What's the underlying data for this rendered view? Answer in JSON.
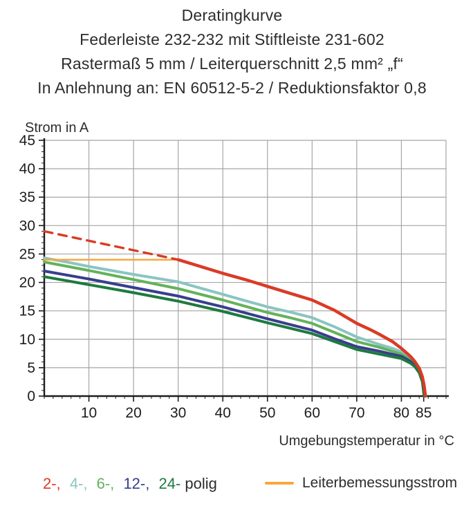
{
  "chart_data": {
    "type": "line",
    "title_lines": [
      "Deratingkurve",
      "Federleiste 232-232 mit Stiftleiste 231-602",
      "Rastermaß 5 mm / Leiterquerschnitt 2,5 mm² „f“",
      "In Anlehnung an: EN 60512-5-2 / Reduktionsfaktor 0,8"
    ],
    "ylabel": "Strom in A",
    "xlabel": "Umgebungstemperatur in °C",
    "xlim": [
      0,
      90
    ],
    "ylim": [
      0,
      45
    ],
    "x_ticks": [
      10,
      20,
      30,
      40,
      50,
      60,
      70,
      80,
      85
    ],
    "y_ticks": [
      0,
      5,
      10,
      15,
      20,
      25,
      30,
      35,
      40,
      45
    ],
    "grid": true,
    "grid_color": "#a5a5a5",
    "axis_color": "#1c1c1c",
    "legend_position": "bottom",
    "series": [
      {
        "name": "4-polig",
        "label": "4-polig",
        "color": "#8ac5c1",
        "style": "solid",
        "width": 4,
        "points": [
          [
            0,
            24.3
          ],
          [
            5,
            23.6
          ],
          [
            10,
            22.8
          ],
          [
            20,
            21.4
          ],
          [
            30,
            20.1
          ],
          [
            35,
            19.0
          ],
          [
            40,
            17.9
          ],
          [
            45,
            16.8
          ],
          [
            50,
            15.7
          ],
          [
            55,
            14.8
          ],
          [
            60,
            13.8
          ],
          [
            65,
            12.2
          ],
          [
            70,
            10.4
          ],
          [
            75,
            9.1
          ],
          [
            78,
            8.4
          ],
          [
            80,
            7.8
          ],
          [
            82,
            6.8
          ],
          [
            83,
            6.0
          ],
          [
            84,
            4.8
          ],
          [
            84.7,
            3.2
          ],
          [
            85.2,
            0
          ]
        ]
      },
      {
        "name": "6-polig",
        "label": "6-polig",
        "color": "#64b25b",
        "style": "solid",
        "width": 4,
        "points": [
          [
            0,
            23.6
          ],
          [
            10,
            22.1
          ],
          [
            20,
            20.5
          ],
          [
            30,
            18.9
          ],
          [
            40,
            16.9
          ],
          [
            50,
            14.7
          ],
          [
            55,
            13.8
          ],
          [
            60,
            12.8
          ],
          [
            65,
            11.2
          ],
          [
            70,
            9.6
          ],
          [
            75,
            8.6
          ],
          [
            80,
            7.4
          ],
          [
            82,
            6.4
          ],
          [
            83,
            5.7
          ],
          [
            84,
            4.5
          ],
          [
            84.7,
            2.9
          ],
          [
            85.2,
            0
          ]
        ]
      },
      {
        "name": "12-polig",
        "label": "12-polig",
        "color": "#383e8d",
        "style": "solid",
        "width": 4,
        "points": [
          [
            0,
            22.0
          ],
          [
            10,
            20.6
          ],
          [
            20,
            19.1
          ],
          [
            30,
            17.6
          ],
          [
            40,
            15.7
          ],
          [
            50,
            13.6
          ],
          [
            60,
            11.6
          ],
          [
            65,
            10.1
          ],
          [
            70,
            8.7
          ],
          [
            75,
            7.9
          ],
          [
            80,
            7.0
          ],
          [
            82,
            6.1
          ],
          [
            83,
            5.4
          ],
          [
            84,
            4.3
          ],
          [
            84.7,
            2.7
          ],
          [
            85.1,
            0
          ]
        ]
      },
      {
        "name": "24-polig",
        "label": "24-polig",
        "color": "#1e7a3e",
        "style": "solid",
        "width": 4,
        "points": [
          [
            0,
            21.0
          ],
          [
            10,
            19.6
          ],
          [
            20,
            18.2
          ],
          [
            30,
            16.7
          ],
          [
            40,
            14.9
          ],
          [
            50,
            12.9
          ],
          [
            60,
            11.0
          ],
          [
            65,
            9.6
          ],
          [
            70,
            8.2
          ],
          [
            75,
            7.4
          ],
          [
            80,
            6.6
          ],
          [
            82,
            5.8
          ],
          [
            83,
            5.2
          ],
          [
            84,
            4.1
          ],
          [
            84.7,
            2.5
          ],
          [
            85.1,
            0
          ]
        ]
      },
      {
        "name": "leiterbemessungsstrom",
        "label": "Leiterbemessungsstrom",
        "color": "#f6a83f",
        "style": "solid",
        "width": 2.5,
        "points": [
          [
            0,
            24
          ],
          [
            30,
            24
          ]
        ]
      },
      {
        "name": "2-polig-projektion",
        "label": "2-polig (gestrichelt)",
        "color": "#da3b26",
        "style": "dashed",
        "width": 3.4,
        "points": [
          [
            0,
            29
          ],
          [
            30,
            24
          ]
        ]
      },
      {
        "name": "2-polig",
        "label": "2-polig",
        "color": "#da3b26",
        "style": "solid",
        "width": 4.5,
        "points": [
          [
            30,
            24
          ],
          [
            35,
            22.8
          ],
          [
            40,
            21.6
          ],
          [
            45,
            20.5
          ],
          [
            50,
            19.3
          ],
          [
            55,
            18.1
          ],
          [
            60,
            16.9
          ],
          [
            65,
            15.1
          ],
          [
            70,
            12.8
          ],
          [
            73,
            11.7
          ],
          [
            75,
            10.9
          ],
          [
            78,
            9.6
          ],
          [
            80,
            8.4
          ],
          [
            82,
            7.0
          ],
          [
            83,
            6.1
          ],
          [
            84,
            4.9
          ],
          [
            84.7,
            3.4
          ],
          [
            85.1,
            1.8
          ],
          [
            85.4,
            0
          ]
        ]
      }
    ]
  },
  "legend": {
    "poles": {
      "segments": [
        {
          "text": "2-,",
          "color": "#da3b26"
        },
        {
          "text": "4-,",
          "color": "#8ac5c1"
        },
        {
          "text": "6-,",
          "color": "#64b25b"
        },
        {
          "text": "12-,",
          "color": "#383e8d"
        },
        {
          "text": "24-",
          "color": "#1e7a3e"
        },
        {
          "text": "polig",
          "color": "#2d2d2d"
        }
      ]
    },
    "leiter": {
      "label": "Leiterbemessungsstrom",
      "color": "#f6a83f"
    }
  }
}
